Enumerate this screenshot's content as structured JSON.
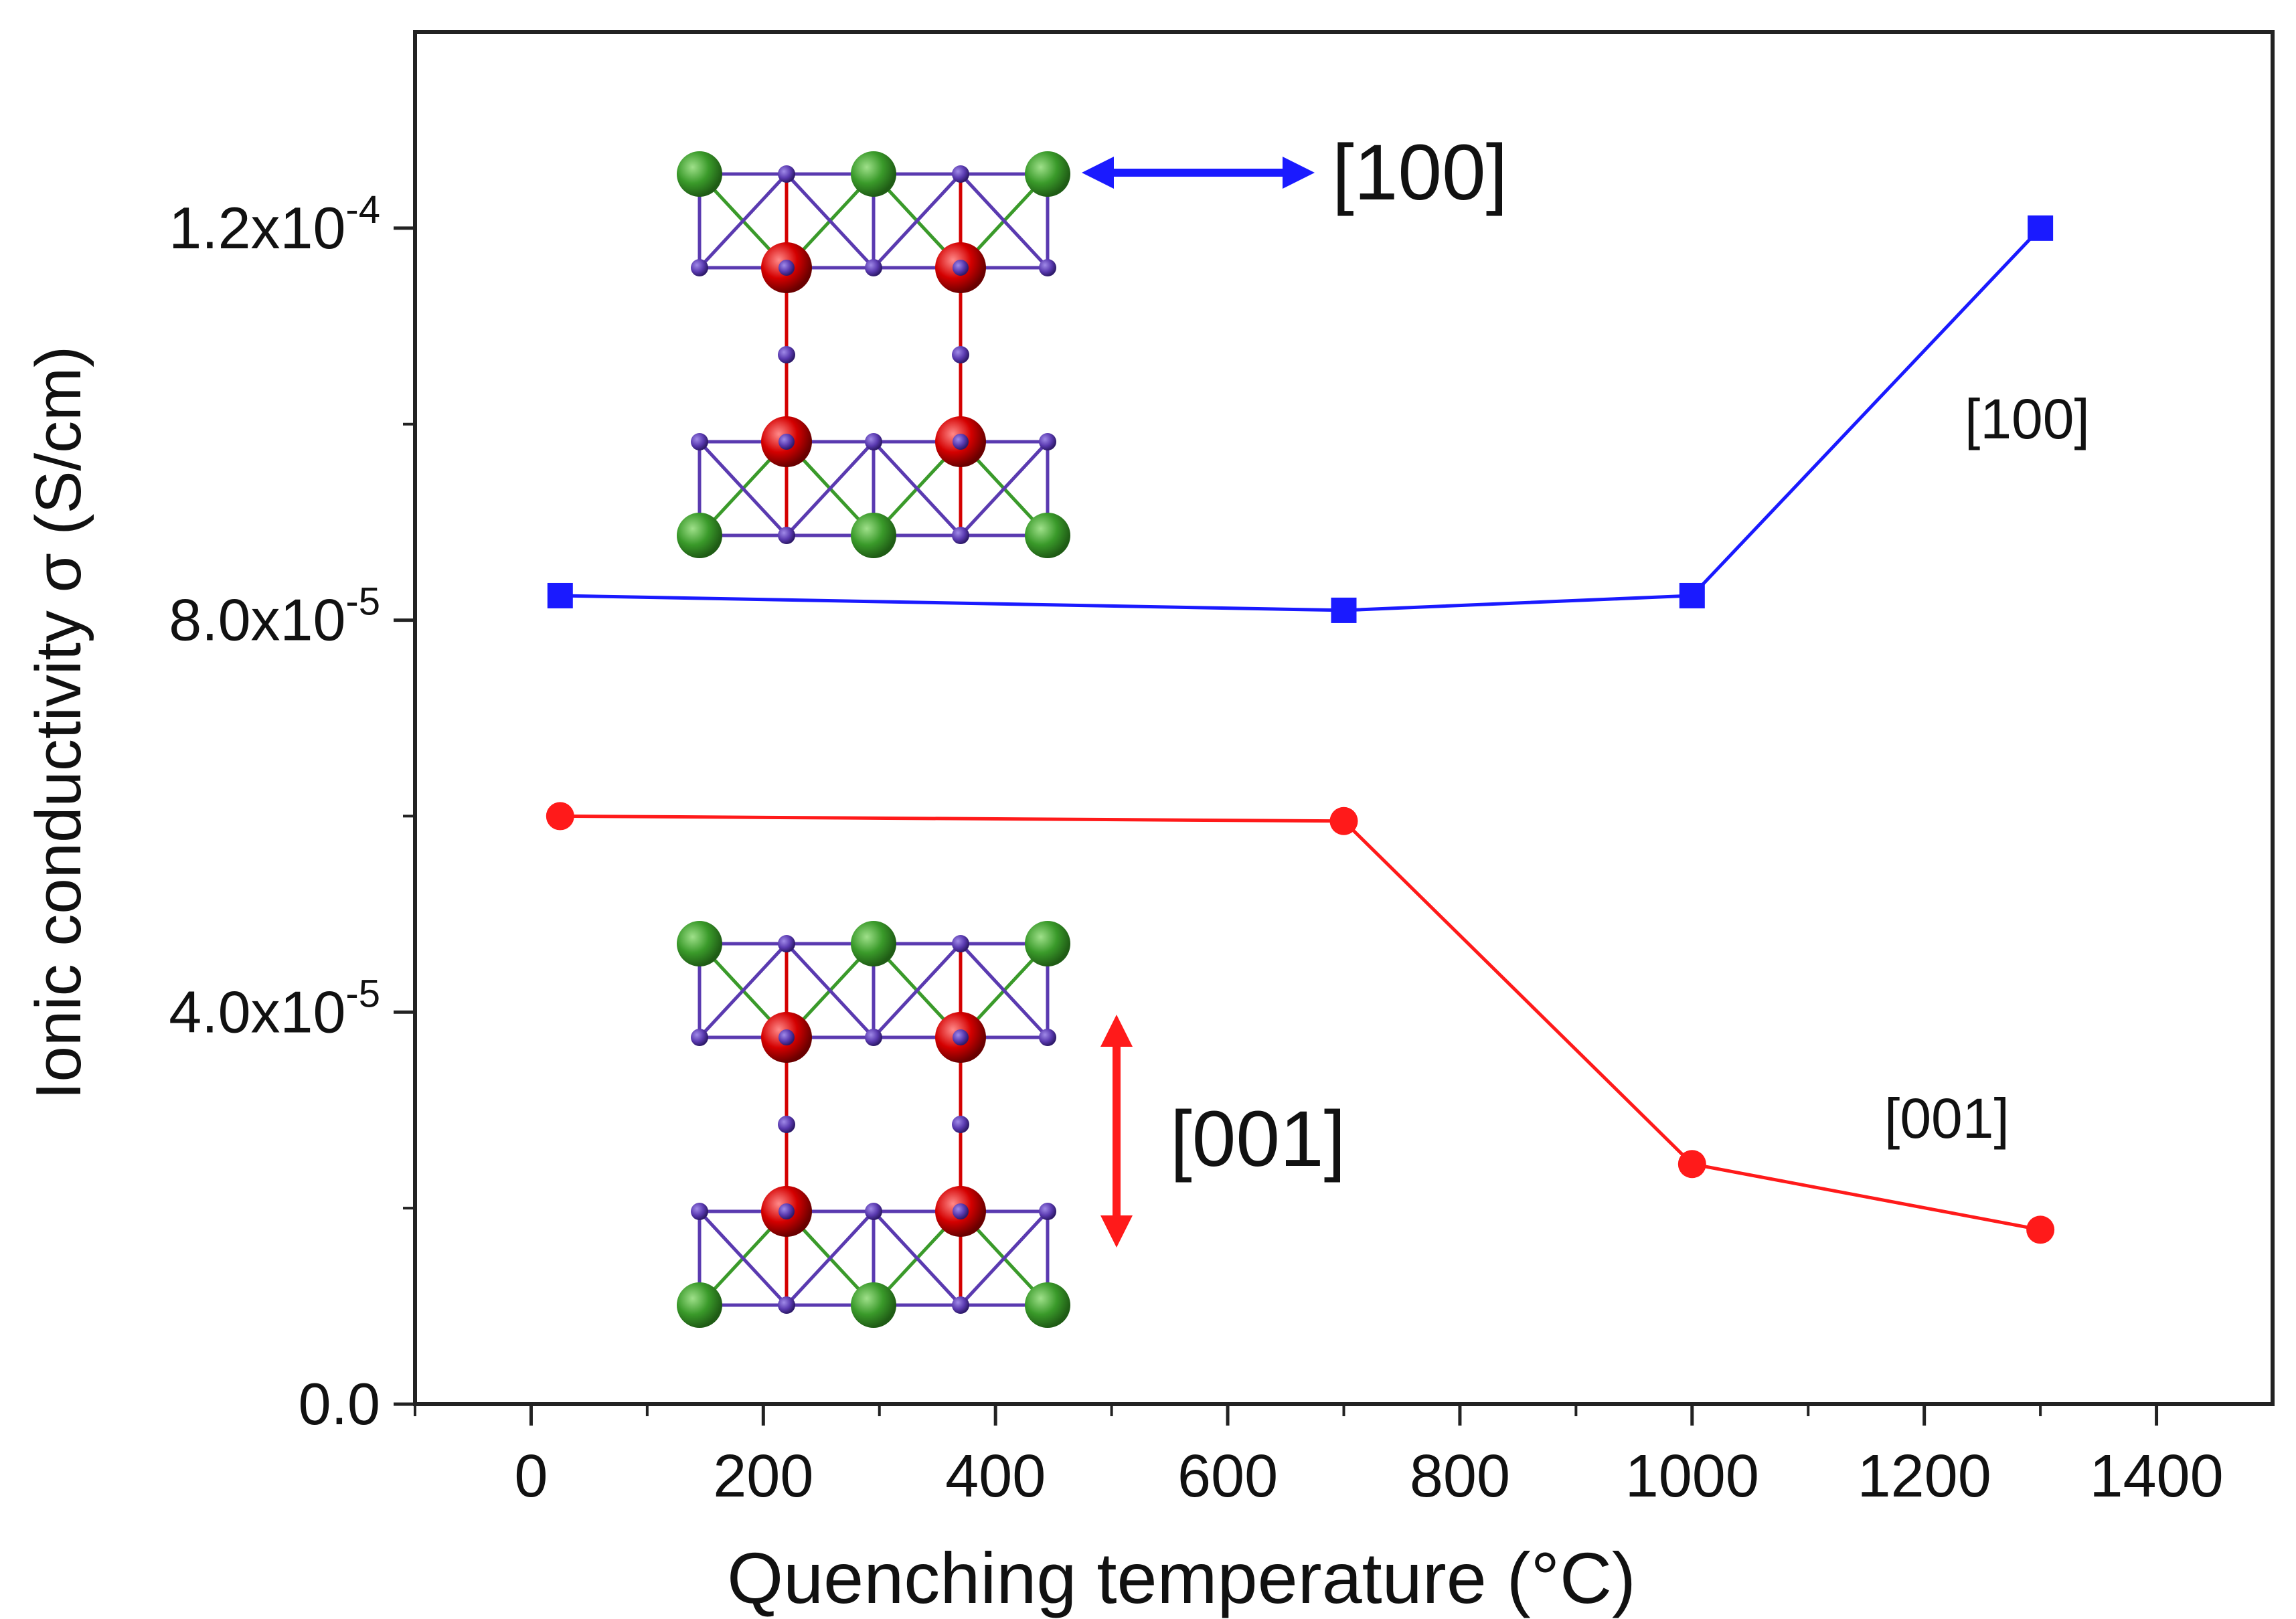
{
  "chart_data": {
    "type": "line",
    "title": "",
    "xlabel": "Quenching temperature (°C)",
    "ylabel": "Ionic conductivity σ (S/cm)",
    "xlim": [
      -100,
      1500
    ],
    "ylim": [
      0,
      0.00014
    ],
    "x_ticks": [
      0,
      200,
      400,
      600,
      800,
      1000,
      1200,
      1400
    ],
    "x_tick_labels": [
      "0",
      "200",
      "400",
      "600",
      "800",
      "1000",
      "1200",
      "1400"
    ],
    "y_ticks": [
      0,
      4e-05,
      8e-05,
      0.00012
    ],
    "y_tick_labels": [
      {
        "mantissa": "0.0",
        "exp": ""
      },
      {
        "mantissa": "4.0x10",
        "exp": "-5"
      },
      {
        "mantissa": "8.0x10",
        "exp": "-5"
      },
      {
        "mantissa": "1.2x10",
        "exp": "-4"
      }
    ],
    "series": [
      {
        "name": "[100]",
        "color": "#1a1aff",
        "marker": "square",
        "x": [
          25,
          700,
          1000,
          1300
        ],
        "values": [
          8.25e-05,
          8.1e-05,
          8.25e-05,
          0.00012
        ]
      },
      {
        "name": "[001]",
        "color": "#ff1a1a",
        "marker": "circle",
        "x": [
          25,
          700,
          1000,
          1300
        ],
        "values": [
          6e-05,
          5.95e-05,
          2.45e-05,
          1.78e-05
        ]
      }
    ],
    "annotations": [
      {
        "id": "label-100-series",
        "text": "[100]"
      },
      {
        "id": "label-001-series",
        "text": "[001]"
      },
      {
        "id": "label-100-arrow",
        "text": "[100]"
      },
      {
        "id": "label-001-arrow",
        "text": "[001]"
      }
    ],
    "colors": {
      "atom_green": "#3a9a2a",
      "atom_red": "#d40000",
      "atom_purple": "#5a3ab0",
      "arrow_blue": "#1a1aff",
      "arrow_red": "#ff1a1a"
    }
  }
}
